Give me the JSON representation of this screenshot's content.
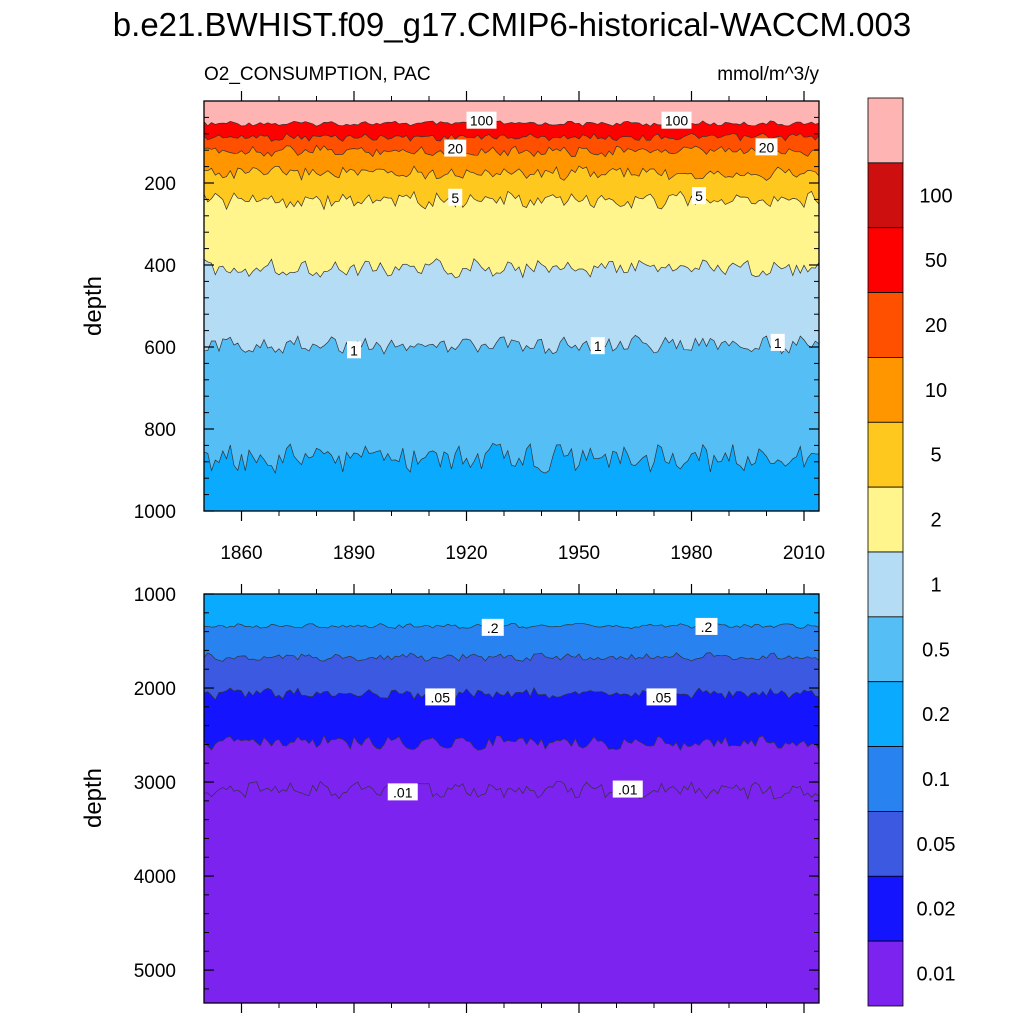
{
  "chart_data": [
    {
      "type": "contour",
      "title": "b.e21.BWHIST.f09_g17.CMIP6-historical-WACCM.003",
      "subtitle_left": "O2_CONSUMPTION, PAC",
      "subtitle_right": "mmol/m^3/y",
      "ylabel": "depth",
      "xlim": [
        1850,
        2014
      ],
      "ylim": [
        0,
        1000
      ],
      "y_reversed": true,
      "x_ticks": [
        "1860",
        "1890",
        "1920",
        "1950",
        "1980",
        "2010"
      ],
      "y_ticks": [
        "200",
        "400",
        "600",
        "800",
        "1000"
      ],
      "contour_boundaries_depth": [
        {
          "level": 100,
          "depth": 55
        },
        {
          "level": 50,
          "depth": 88
        },
        {
          "level": 20,
          "depth": 122
        },
        {
          "level": 10,
          "depth": 175
        },
        {
          "level": 5,
          "depth": 242
        },
        {
          "level": 2,
          "depth": 408
        },
        {
          "level": 1,
          "depth": 595
        },
        {
          "level": 0.5,
          "depth": 870
        }
      ],
      "contour_labels": [
        {
          "text": "100",
          "year": 1924,
          "depth": 48
        },
        {
          "text": "100",
          "year": 1976,
          "depth": 48
        },
        {
          "text": "20",
          "year": 1917,
          "depth": 116
        },
        {
          "text": "20",
          "year": 2000,
          "depth": 113
        },
        {
          "text": "5",
          "year": 1917,
          "depth": 236
        },
        {
          "text": "5",
          "year": 1982,
          "depth": 232
        },
        {
          "text": "1",
          "year": 1890,
          "depth": 608
        },
        {
          "text": "1",
          "year": 1955,
          "depth": 598
        },
        {
          "text": "1",
          "year": 2003,
          "depth": 590
        }
      ]
    },
    {
      "type": "contour",
      "ylabel": "depth",
      "xlim": [
        1850,
        2014
      ],
      "ylim": [
        1000,
        5350
      ],
      "y_reversed": true,
      "y_ticks": [
        "1000",
        "2000",
        "3000",
        "4000",
        "5000"
      ],
      "contour_boundaries_depth": [
        {
          "level": 0.2,
          "depth": 1340
        },
        {
          "level": 0.1,
          "depth": 1670
        },
        {
          "level": 0.05,
          "depth": 2060
        },
        {
          "level": 0.02,
          "depth": 2580
        },
        {
          "level": 0.01,
          "depth": 3090
        }
      ],
      "contour_labels": [
        {
          "text": ".2",
          "year": 1927,
          "depth": 1360
        },
        {
          "text": ".2",
          "year": 1984,
          "depth": 1350
        },
        {
          "text": ".05",
          "year": 1913,
          "depth": 2100
        },
        {
          "text": ".05",
          "year": 1972,
          "depth": 2100
        },
        {
          "text": ".01",
          "year": 1903,
          "depth": 3110
        },
        {
          "text": ".01",
          "year": 1963,
          "depth": 3080
        }
      ]
    }
  ],
  "colorbar": {
    "levels": [
      {
        "label": "",
        "color": "#ffb4b4"
      },
      {
        "label": "100",
        "color": "#cd0f0f"
      },
      {
        "label": "50",
        "color": "#ff0000"
      },
      {
        "label": "20",
        "color": "#ff5000"
      },
      {
        "label": "10",
        "color": "#ff9600"
      },
      {
        "label": "5",
        "color": "#ffc81e"
      },
      {
        "label": "2",
        "color": "#fff58c"
      },
      {
        "label": "1",
        "color": "#b4dcf5"
      },
      {
        "label": "0.5",
        "color": "#55bef5"
      },
      {
        "label": "0.2",
        "color": "#0aaaff"
      },
      {
        "label": "0.1",
        "color": "#2882f0"
      },
      {
        "label": "0.05",
        "color": "#3c5ae1"
      },
      {
        "label": "0.02",
        "color": "#1414ff"
      },
      {
        "label": "0.01",
        "color": "#7d23f0"
      }
    ]
  }
}
